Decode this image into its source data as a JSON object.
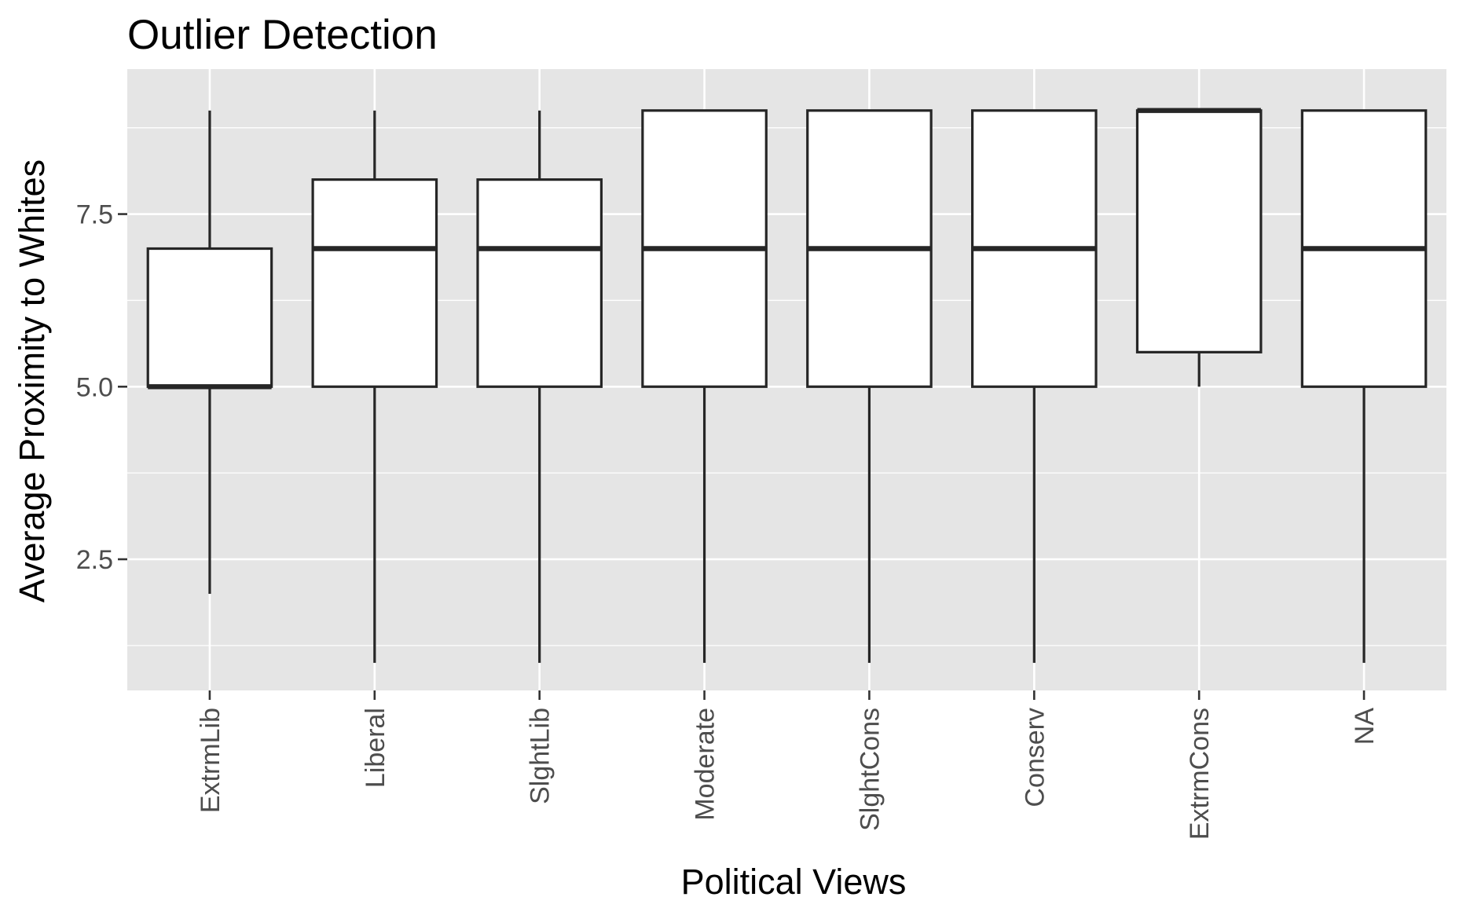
{
  "chart_data": {
    "type": "boxplot",
    "title": "Outlier Detection",
    "xlabel": "Political Views",
    "ylabel": "Average Proximity to Whites",
    "ylim": [
      0.6,
      9.6
    ],
    "yticks": [
      2.5,
      5.0,
      7.5
    ],
    "ytick_labels": [
      "2.5",
      "5.0",
      "7.5"
    ],
    "y_minor_gridlines": [
      1.25,
      3.75,
      6.25,
      8.75
    ],
    "grid": true,
    "legend": "none",
    "categories": [
      "ExtrmLib",
      "Liberal",
      "SlghtLib",
      "Moderate",
      "SlghtCons",
      "Conserv",
      "ExtrmCons",
      "NA"
    ],
    "boxes": [
      {
        "category": "ExtrmLib",
        "whisker_low": 2,
        "q1": 5,
        "median": 5,
        "q3": 7,
        "whisker_high": 9
      },
      {
        "category": "Liberal",
        "whisker_low": 1,
        "q1": 5,
        "median": 7,
        "q3": 8,
        "whisker_high": 9
      },
      {
        "category": "SlghtLib",
        "whisker_low": 1,
        "q1": 5,
        "median": 7,
        "q3": 8,
        "whisker_high": 9
      },
      {
        "category": "Moderate",
        "whisker_low": 1,
        "q1": 5,
        "median": 7,
        "q3": 9,
        "whisker_high": 9
      },
      {
        "category": "SlghtCons",
        "whisker_low": 1,
        "q1": 5,
        "median": 7,
        "q3": 9,
        "whisker_high": 9
      },
      {
        "category": "Conserv",
        "whisker_low": 1,
        "q1": 5,
        "median": 7,
        "q3": 9,
        "whisker_high": 9
      },
      {
        "category": "ExtrmCons",
        "whisker_low": 5,
        "q1": 5.5,
        "median": 9,
        "q3": 9,
        "whisker_high": 9
      },
      {
        "category": "NA",
        "whisker_low": 1,
        "q1": 5,
        "median": 7,
        "q3": 9,
        "whisker_high": 9
      }
    ],
    "colors": {
      "panel_background": "#e5e5e5",
      "grid": "#ffffff",
      "box_fill": "#ffffff",
      "box_stroke": "#262626",
      "tick_text": "#4d4d4d"
    }
  }
}
